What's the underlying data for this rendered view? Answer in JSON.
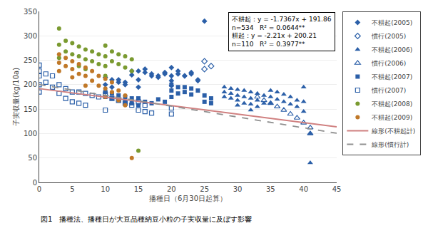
{
  "chart_data": {
    "type": "scatter",
    "xlabel": "播種日（6月30日起算）",
    "ylabel": "子実収量(kg/10a)",
    "xlim": [
      0,
      45
    ],
    "ylim": [
      0,
      350
    ],
    "xticks": [
      0,
      5,
      10,
      15,
      20,
      25,
      30,
      35,
      40,
      45
    ],
    "yticks": [
      0,
      50,
      100,
      150,
      200,
      250,
      300,
      350
    ],
    "grid": "y",
    "legend": "right",
    "annotations": [
      "不耕起：y = -1.7367x + 191.86",
      "n=534   R² = 0.0644**",
      "耕起：y = -2.21x + 200.21",
      "n=110   R² = 0.3977**",
      "図1　播種法、播種日が大豆品種納豆小粒の子実収量に及ぼす影響"
    ],
    "series": [
      {
        "name": "不耕起(2005)",
        "type": "scatter",
        "color": "#2b5fa8",
        "marker": "diamond",
        "x": [
          10,
          10,
          10,
          11,
          11,
          12,
          13,
          14,
          15,
          15,
          16,
          17,
          18,
          19,
          20,
          20,
          20,
          21,
          22,
          23,
          24,
          25,
          20,
          15,
          12,
          13,
          14,
          16,
          17,
          18,
          19,
          21,
          22,
          23,
          24
        ],
        "values": [
          215,
          200,
          185,
          210,
          195,
          205,
          200,
          220,
          210,
          195,
          225,
          218,
          215,
          222,
          218,
          208,
          198,
          222,
          218,
          222,
          208,
          330,
          235,
          228,
          210,
          205,
          228,
          232,
          222,
          218,
          225,
          228,
          218,
          225,
          210
        ]
      },
      {
        "name": "慣行(2005)",
        "type": "scatter",
        "color": "#2b5fa8",
        "marker": "diamond-open",
        "x": [
          25,
          25,
          26
        ],
        "values": [
          248,
          232,
          238
        ]
      },
      {
        "name": "不耕起(2006)",
        "type": "scatter",
        "color": "#2b5fa8",
        "marker": "triangle-up",
        "x": [
          28,
          28,
          28,
          29,
          29,
          29,
          30,
          30,
          30,
          30,
          31,
          31,
          31,
          32,
          32,
          32,
          32,
          33,
          33,
          33,
          34,
          34,
          35,
          35,
          35,
          36,
          36,
          37,
          37,
          38,
          38,
          39,
          39,
          40,
          40,
          40,
          41,
          41
        ],
        "values": [
          195,
          185,
          175,
          192,
          182,
          172,
          190,
          178,
          168,
          158,
          188,
          175,
          162,
          185,
          172,
          160,
          148,
          182,
          168,
          155,
          178,
          162,
          188,
          175,
          162,
          185,
          170,
          180,
          165,
          175,
          160,
          168,
          155,
          195,
          165,
          145,
          100,
          40
        ]
      },
      {
        "name": "慣行(2006)",
        "type": "scatter",
        "color": "#2b5fa8",
        "marker": "triangle-up-open",
        "x": [
          33,
          34,
          35,
          36,
          37,
          38,
          39,
          40,
          41,
          41
        ],
        "values": [
          175,
          168,
          162,
          155,
          148,
          140,
          132,
          122,
          112,
          100
        ]
      },
      {
        "name": "不耕起(2007)",
        "type": "scatter",
        "color": "#2b5fa8",
        "marker": "square",
        "x": [
          10,
          10,
          11,
          11,
          12,
          12,
          13,
          13,
          14,
          14,
          15,
          15,
          16,
          17,
          18,
          19,
          20,
          20,
          20,
          21,
          21,
          22,
          22,
          23,
          23,
          24,
          25,
          25,
          26,
          26
        ],
        "values": [
          185,
          175,
          182,
          172,
          178,
          168,
          175,
          165,
          172,
          162,
          172,
          158,
          165,
          162,
          170,
          165,
          200,
          188,
          175,
          195,
          182,
          195,
          185,
          192,
          180,
          188,
          178,
          165,
          172,
          162
        ]
      },
      {
        "name": "慣行(2007)",
        "type": "scatter",
        "color": "#2b5fa8",
        "marker": "square-open",
        "x": [
          0,
          0,
          0,
          0,
          0,
          1,
          1,
          2,
          2,
          3,
          3,
          4,
          4,
          5,
          5,
          6,
          6,
          7,
          7,
          8,
          9,
          10,
          10,
          11,
          12,
          13,
          14,
          15,
          15,
          16,
          16,
          17,
          20,
          20
        ],
        "values": [
          240,
          228,
          218,
          200,
          185,
          222,
          205,
          218,
          195,
          200,
          182,
          192,
          172,
          185,
          165,
          185,
          162,
          182,
          158,
          178,
          175,
          178,
          148,
          172,
          168,
          162,
          158,
          165,
          148,
          158,
          145,
          142,
          152,
          140
        ]
      },
      {
        "name": "不耕起(2008)",
        "type": "scatter",
        "color": "#7a9a30",
        "marker": "circle",
        "x": [
          3,
          3,
          3,
          4,
          4,
          5,
          5,
          6,
          6,
          6,
          7,
          7,
          7,
          8,
          8,
          9,
          9,
          10,
          10,
          10,
          10,
          11,
          11,
          12,
          12,
          13,
          13,
          14,
          14,
          15
        ],
        "values": [
          315,
          282,
          255,
          290,
          268,
          285,
          262,
          278,
          258,
          238,
          272,
          252,
          232,
          268,
          248,
          262,
          242,
          280,
          258,
          238,
          218,
          268,
          248,
          262,
          242,
          258,
          235,
          252,
          228,
          65
        ]
      },
      {
        "name": "不耕起(2009)",
        "type": "scatter",
        "color": "#c07828",
        "marker": "circle",
        "x": [
          3,
          3,
          3,
          4,
          4,
          5,
          5,
          5,
          6,
          6,
          7,
          7,
          7,
          8,
          8,
          9,
          9,
          10,
          10,
          10,
          11,
          11,
          12,
          12,
          13,
          13,
          14
        ],
        "values": [
          262,
          245,
          228,
          255,
          238,
          248,
          232,
          215,
          242,
          222,
          235,
          218,
          198,
          228,
          208,
          218,
          198,
          212,
          192,
          175,
          205,
          185,
          188,
          168,
          178,
          158,
          50
        ]
      },
      {
        "name": "線形(不耕起計)",
        "type": "line",
        "color": "#d08080",
        "line_style": "solid",
        "x": [
          0,
          45
        ],
        "values": [
          191.86,
          113.7085
        ]
      },
      {
        "name": "線形(慣行計)",
        "type": "line",
        "color": "#909090",
        "line_style": "dash",
        "x": [
          0,
          45
        ],
        "values": [
          200.21,
          100.76
        ]
      }
    ]
  }
}
